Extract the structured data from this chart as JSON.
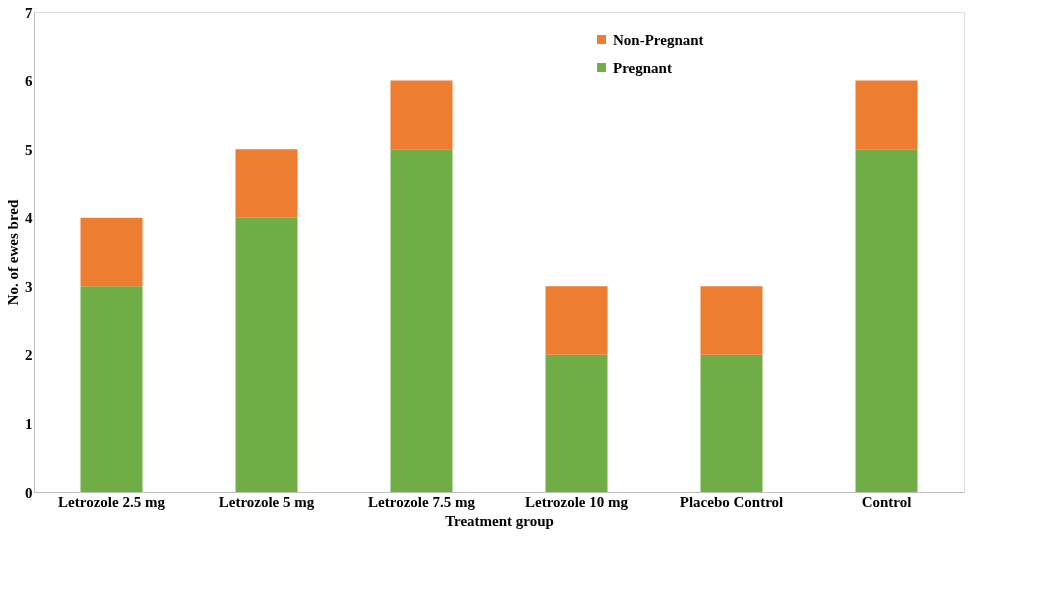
{
  "chart_data": {
    "type": "bar",
    "stacked": true,
    "xlabel": "Treatment group",
    "ylabel": "No. of ewes bred",
    "categories": [
      "Letrozole 2.5 mg",
      "Letrozole 5 mg",
      "Letrozole 7.5 mg",
      "Letrozole 10 mg",
      "Placebo Control",
      "Control"
    ],
    "series": [
      {
        "name": "Pregnant",
        "color": "#70ad47",
        "values": [
          3,
          4,
          5,
          2,
          2,
          5
        ]
      },
      {
        "name": "Non-Pregnant",
        "color": "#ed7d31",
        "values": [
          1,
          1,
          1,
          1,
          1,
          1
        ]
      }
    ],
    "ylim": [
      0,
      7
    ],
    "yticks": [
      0,
      1,
      2,
      3,
      4,
      5,
      6,
      7
    ],
    "grid": false,
    "legend": "top right"
  }
}
